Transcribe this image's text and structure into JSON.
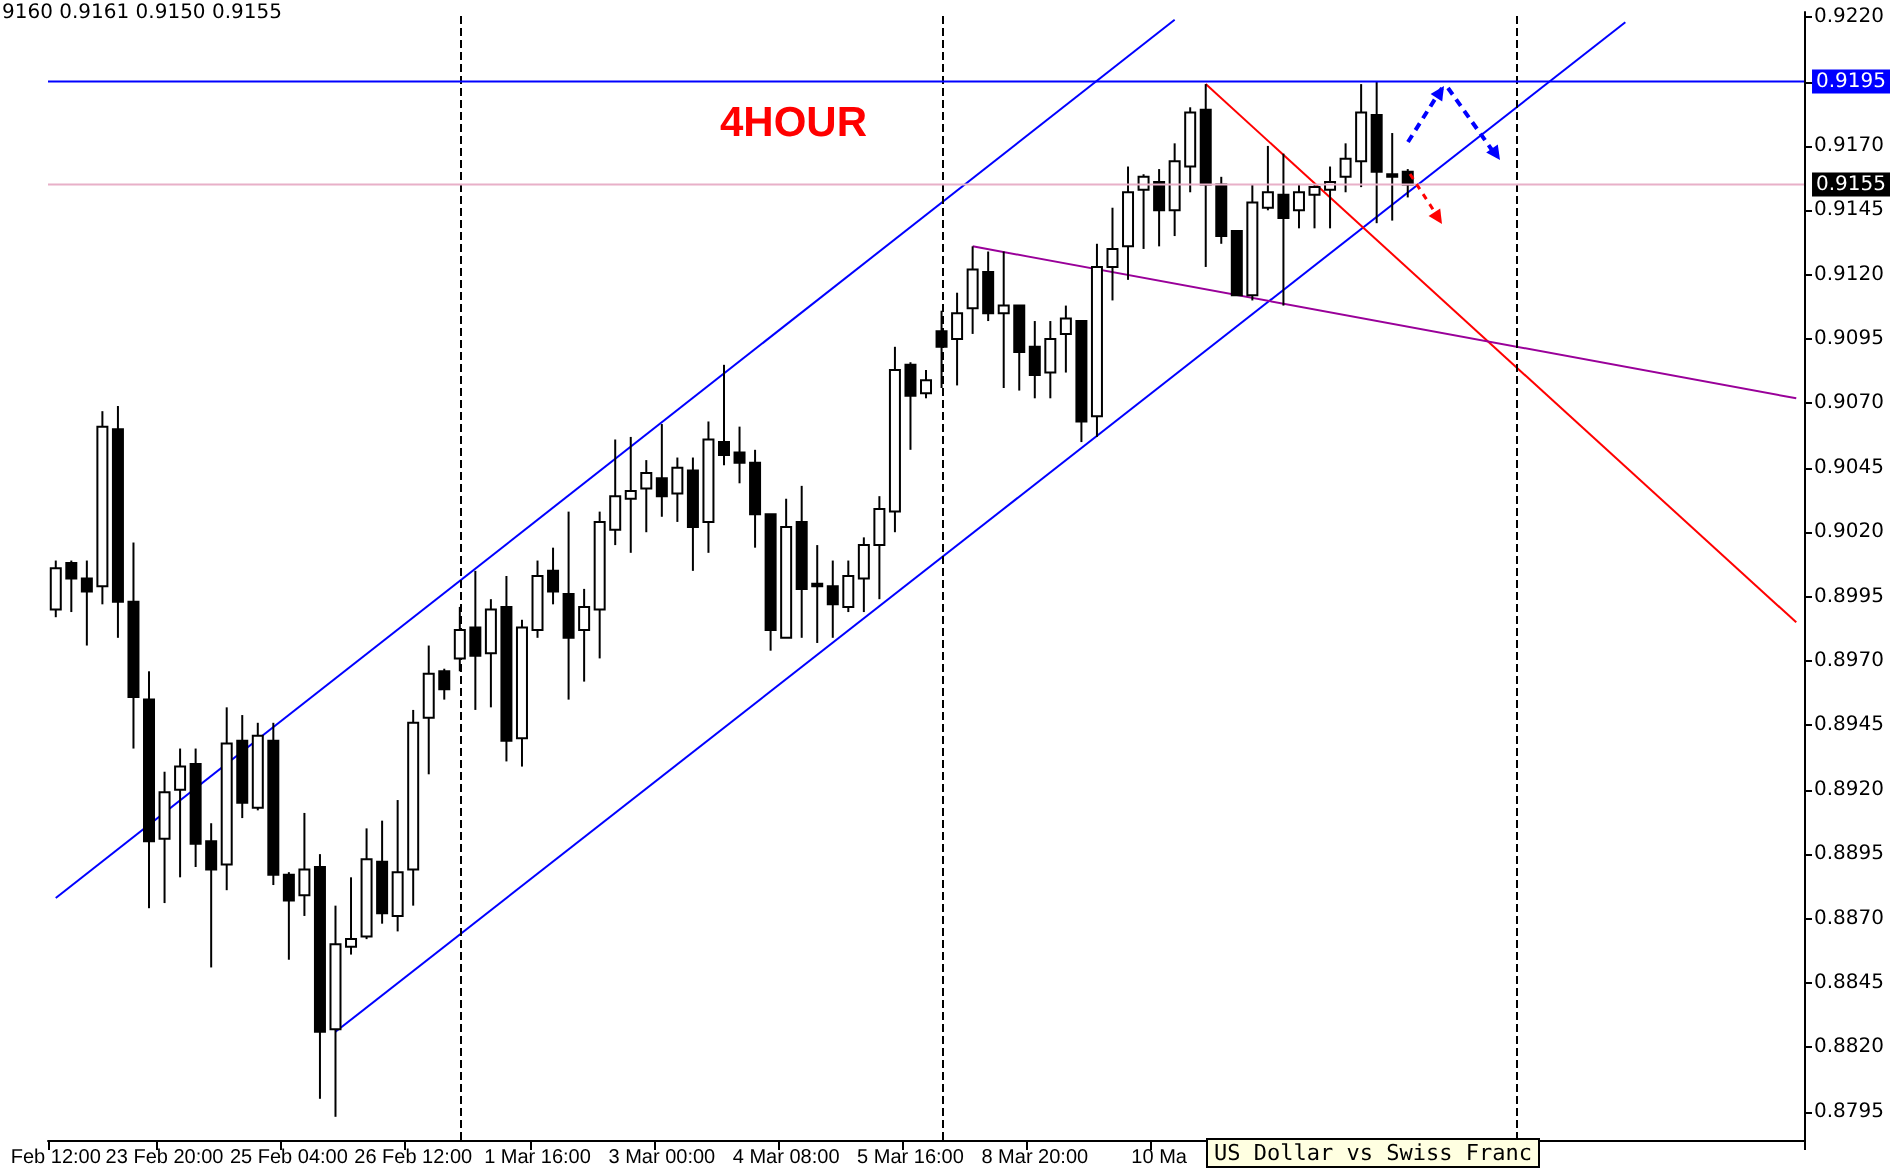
{
  "chart_data": {
    "type": "candlestick",
    "title": "4HOUR",
    "annotations": [
      "9160 0.9161 0.9150 0.9155",
      "US Dollar vs Swiss Franc"
    ],
    "categories": [
      "Feb 12:00",
      null,
      null,
      null,
      null,
      null,
      null,
      "23 Feb 20:00",
      null,
      null,
      null,
      null,
      null,
      null,
      null,
      "25 Feb 04:00",
      null,
      null,
      null,
      null,
      null,
      null,
      null,
      "26 Feb 12:00",
      null,
      null,
      null,
      null,
      null,
      null,
      null,
      "1 Mar 16:00",
      null,
      null,
      null,
      null,
      null,
      null,
      null,
      "3 Mar 00:00",
      null,
      null,
      null,
      null,
      null,
      null,
      null,
      "4 Mar 08:00",
      null,
      null,
      null,
      null,
      null,
      null,
      null,
      "5 Mar 16:00",
      null,
      null,
      null,
      null,
      null,
      null,
      null,
      "8 Mar 20:00",
      null,
      null,
      null,
      null,
      null,
      null,
      null,
      "10 Ma",
      null,
      null,
      null,
      null,
      null,
      null,
      null,
      null,
      null,
      null,
      null,
      null,
      null,
      null,
      null,
      null,
      null,
      null,
      null,
      null,
      null,
      null,
      null,
      null,
      null,
      null,
      null,
      null,
      null,
      null,
      null,
      null,
      null,
      null,
      null,
      null,
      null,
      null,
      null,
      null,
      null
    ],
    "ohlc": [
      [
        0.899,
        0.9009,
        0.8987,
        0.9006
      ],
      [
        0.9008,
        0.9009,
        0.8989,
        0.9002
      ],
      [
        0.9002,
        0.9009,
        0.8976,
        0.8997
      ],
      [
        0.8999,
        0.9067,
        0.8992,
        0.9061
      ],
      [
        0.906,
        0.9069,
        0.8979,
        0.8993
      ],
      [
        0.8993,
        0.9016,
        0.8936,
        0.8956
      ],
      [
        0.8955,
        0.8966,
        0.8874,
        0.89
      ],
      [
        0.8901,
        0.8927,
        0.8876,
        0.8919
      ],
      [
        0.892,
        0.8936,
        0.8886,
        0.8929
      ],
      [
        0.893,
        0.8936,
        0.889,
        0.8899
      ],
      [
        0.89,
        0.8907,
        0.8851,
        0.8889
      ],
      [
        0.8891,
        0.8952,
        0.8881,
        0.8938
      ],
      [
        0.8939,
        0.8949,
        0.8909,
        0.8915
      ],
      [
        0.8913,
        0.8946,
        0.8912,
        0.8941
      ],
      [
        0.8939,
        0.8946,
        0.8883,
        0.8887
      ],
      [
        0.8887,
        0.8888,
        0.8854,
        0.8877
      ],
      [
        0.8879,
        0.8911,
        0.8871,
        0.8889
      ],
      [
        0.889,
        0.8895,
        0.88,
        0.8826
      ],
      [
        0.8827,
        0.8875,
        0.8793,
        0.886
      ],
      [
        0.8859,
        0.8886,
        0.8856,
        0.8862
      ],
      [
        0.8863,
        0.8905,
        0.8862,
        0.8893
      ],
      [
        0.8892,
        0.8908,
        0.8868,
        0.8872
      ],
      [
        0.8871,
        0.8916,
        0.8865,
        0.8888
      ],
      [
        0.8889,
        0.8951,
        0.8875,
        0.8946
      ],
      [
        0.8948,
        0.8976,
        0.8926,
        0.8965
      ],
      [
        0.8966,
        0.8967,
        0.8955,
        0.8959
      ],
      [
        0.8971,
        0.8991,
        0.8966,
        0.8982
      ],
      [
        0.8983,
        0.9005,
        0.8951,
        0.8972
      ],
      [
        0.8973,
        0.8994,
        0.8952,
        0.899
      ],
      [
        0.8991,
        0.9003,
        0.8931,
        0.8939
      ],
      [
        0.894,
        0.8986,
        0.8929,
        0.8983
      ],
      [
        0.8982,
        0.9009,
        0.8979,
        0.9003
      ],
      [
        0.9005,
        0.9014,
        0.8992,
        0.8997
      ],
      [
        0.8996,
        0.9028,
        0.8955,
        0.8979
      ],
      [
        0.8982,
        0.8998,
        0.8962,
        0.8991
      ],
      [
        0.899,
        0.9028,
        0.8971,
        0.9024
      ],
      [
        0.9021,
        0.9056,
        0.9015,
        0.9034
      ],
      [
        0.9033,
        0.9057,
        0.9012,
        0.9036
      ],
      [
        0.9037,
        0.9048,
        0.902,
        0.9043
      ],
      [
        0.9041,
        0.9062,
        0.9026,
        0.9034
      ],
      [
        0.9035,
        0.9049,
        0.9024,
        0.9045
      ],
      [
        0.9044,
        0.9049,
        0.9005,
        0.9022
      ],
      [
        0.9024,
        0.9063,
        0.9012,
        0.9056
      ],
      [
        0.9055,
        0.9085,
        0.9046,
        0.905
      ],
      [
        0.9051,
        0.9061,
        0.9039,
        0.9047
      ],
      [
        0.9047,
        0.9052,
        0.9014,
        0.9027
      ],
      [
        0.9027,
        0.9027,
        0.8974,
        0.8982
      ],
      [
        0.8979,
        0.9033,
        0.8979,
        0.9022
      ],
      [
        0.9024,
        0.9038,
        0.8979,
        0.8998
      ],
      [
        0.9,
        0.9015,
        0.8977,
        0.8999
      ],
      [
        0.8999,
        0.9009,
        0.8979,
        0.8992
      ],
      [
        0.8991,
        0.9009,
        0.8989,
        0.9003
      ],
      [
        0.9002,
        0.9018,
        0.8989,
        0.9015
      ],
      [
        0.9015,
        0.9034,
        0.8994,
        0.9029
      ],
      [
        0.9028,
        0.9092,
        0.902,
        0.9083
      ],
      [
        0.9085,
        0.9086,
        0.9052,
        0.9073
      ],
      [
        0.9074,
        0.9083,
        0.9072,
        0.9079
      ],
      [
        0.9098,
        0.9106,
        0.9076,
        0.9092
      ],
      [
        0.9095,
        0.9113,
        0.9077,
        0.9105
      ],
      [
        0.9107,
        0.9131,
        0.9097,
        0.9122
      ],
      [
        0.9121,
        0.9129,
        0.9102,
        0.9105
      ],
      [
        0.9105,
        0.9129,
        0.9076,
        0.9108
      ],
      [
        0.9108,
        0.9108,
        0.9075,
        0.909
      ],
      [
        0.9092,
        0.9102,
        0.9072,
        0.9081
      ],
      [
        0.9082,
        0.9102,
        0.9072,
        0.9095
      ],
      [
        0.9097,
        0.9108,
        0.9082,
        0.9103
      ],
      [
        0.9102,
        0.9102,
        0.9055,
        0.9063
      ],
      [
        0.9065,
        0.9132,
        0.9057,
        0.9123
      ],
      [
        0.9123,
        0.9146,
        0.911,
        0.913
      ],
      [
        0.9131,
        0.9162,
        0.9118,
        0.9152
      ],
      [
        0.9153,
        0.9159,
        0.913,
        0.9158
      ],
      [
        0.9156,
        0.9161,
        0.9131,
        0.9145
      ],
      [
        0.9145,
        0.9171,
        0.9135,
        0.9164
      ],
      [
        0.9162,
        0.9185,
        0.9152,
        0.9183
      ],
      [
        0.9184,
        0.9194,
        0.9123,
        0.9155
      ],
      [
        0.9155,
        0.9158,
        0.9132,
        0.9135
      ],
      [
        0.9137,
        0.9137,
        0.9112,
        0.9112
      ],
      [
        0.9112,
        0.9155,
        0.911,
        0.9148
      ],
      [
        0.9146,
        0.917,
        0.9145,
        0.9152
      ],
      [
        0.9151,
        0.9167,
        0.9108,
        0.9142
      ],
      [
        0.9145,
        0.9155,
        0.9138,
        0.9152
      ],
      [
        0.9151,
        0.9155,
        0.9138,
        0.9154
      ],
      [
        0.9153,
        0.9162,
        0.9138,
        0.9156
      ],
      [
        0.9158,
        0.9171,
        0.9152,
        0.9165
      ],
      [
        0.9164,
        0.9194,
        0.9154,
        0.9183
      ],
      [
        0.9182,
        0.9195,
        0.914,
        0.916
      ],
      [
        0.9159,
        0.9175,
        0.9141,
        0.9158
      ],
      [
        0.916,
        0.9161,
        0.915,
        0.9155
      ],
      null,
      null,
      null,
      null,
      null,
      null,
      null,
      null,
      null,
      null,
      null,
      null,
      null,
      null,
      null,
      null,
      null,
      null,
      null,
      null,
      null,
      null,
      null,
      null,
      null
    ],
    "series": [
      {
        "type": "line",
        "color": "#0000ff",
        "values": [
          0.8878,
          null,
          null,
          null,
          null,
          null,
          null,
          null,
          null,
          null,
          null,
          null,
          null,
          null,
          null,
          null,
          null,
          null,
          null,
          null,
          null,
          null,
          null,
          null,
          null,
          null,
          null,
          null,
          null,
          null,
          null,
          null,
          null,
          null,
          null,
          null,
          null,
          null,
          null,
          null,
          null,
          null,
          null,
          null,
          null,
          null,
          null,
          null,
          null,
          null,
          null,
          null,
          null,
          null,
          null,
          null,
          null,
          null,
          null,
          null,
          null,
          null,
          null,
          null,
          null,
          null,
          null,
          null,
          null,
          null,
          null,
          null,
          0.9219,
          null,
          null,
          null,
          null,
          null,
          null,
          null,
          null,
          null,
          null,
          null,
          null,
          null,
          null,
          null,
          null,
          null,
          null,
          null,
          null,
          null,
          null,
          null,
          null,
          null,
          null,
          null,
          null,
          null,
          null,
          null,
          null,
          null,
          null,
          null,
          null,
          null,
          null,
          null,
          null
        ]
      },
      {
        "type": "line",
        "color": "#0000ff",
        "values": [
          null,
          null,
          null,
          null,
          null,
          null,
          null,
          null,
          null,
          null,
          null,
          null,
          null,
          null,
          null,
          null,
          null,
          null,
          0.8826,
          null,
          null,
          null,
          null,
          null,
          null,
          null,
          null,
          null,
          null,
          null,
          null,
          null,
          null,
          null,
          null,
          null,
          null,
          null,
          null,
          null,
          null,
          null,
          null,
          null,
          null,
          null,
          null,
          null,
          null,
          null,
          null,
          null,
          null,
          null,
          null,
          null,
          null,
          null,
          null,
          null,
          null,
          null,
          null,
          null,
          null,
          null,
          null,
          null,
          null,
          null,
          null,
          null,
          null,
          null,
          null,
          null,
          null,
          null,
          null,
          null,
          null,
          null,
          null,
          null,
          null,
          null,
          null,
          null,
          null,
          null,
          null,
          null,
          null,
          null,
          null,
          null,
          null,
          null,
          null,
          null,
          null,
          0.9218,
          null,
          null,
          null,
          null,
          null,
          null,
          null,
          null,
          null,
          null,
          null
        ]
      },
      {
        "type": "line",
        "color": "#ff0000",
        "values": [
          null,
          null,
          null,
          null,
          null,
          null,
          null,
          null,
          null,
          null,
          null,
          null,
          null,
          null,
          null,
          null,
          null,
          null,
          null,
          null,
          null,
          null,
          null,
          null,
          null,
          null,
          null,
          null,
          null,
          null,
          null,
          null,
          null,
          null,
          null,
          null,
          null,
          null,
          null,
          null,
          null,
          null,
          null,
          null,
          null,
          null,
          null,
          null,
          null,
          null,
          null,
          null,
          null,
          null,
          null,
          null,
          null,
          null,
          null,
          null,
          null,
          null,
          null,
          null,
          null,
          null,
          null,
          null,
          null,
          null,
          null,
          null,
          null,
          null,
          0.9194,
          null,
          null,
          null,
          null,
          null,
          null,
          null,
          null,
          null,
          null,
          null,
          null,
          null,
          null,
          null,
          null,
          null,
          null,
          null,
          null,
          null,
          null,
          null,
          null,
          null,
          null,
          null,
          null,
          null,
          null,
          null,
          null,
          null,
          null,
          null,
          null,
          null,
          0.8985
        ]
      },
      {
        "type": "line",
        "color": "#990099",
        "values": [
          null,
          null,
          null,
          null,
          null,
          null,
          null,
          null,
          null,
          null,
          null,
          null,
          null,
          null,
          null,
          null,
          null,
          null,
          null,
          null,
          null,
          null,
          null,
          null,
          null,
          null,
          null,
          null,
          null,
          null,
          null,
          null,
          null,
          null,
          null,
          null,
          null,
          null,
          null,
          null,
          null,
          null,
          null,
          null,
          null,
          null,
          null,
          null,
          null,
          null,
          null,
          null,
          null,
          null,
          null,
          null,
          null,
          null,
          null,
          0.9131,
          null,
          null,
          null,
          null,
          null,
          null,
          null,
          null,
          null,
          null,
          null,
          null,
          null,
          null,
          null,
          null,
          null,
          null,
          null,
          null,
          null,
          null,
          null,
          null,
          null,
          null,
          null,
          null,
          null,
          null,
          null,
          null,
          null,
          null,
          null,
          null,
          null,
          null,
          null,
          null,
          null,
          null,
          null,
          null,
          null,
          null,
          null,
          null,
          null,
          null,
          null,
          null,
          0.9072
        ]
      }
    ],
    "ylim": [
      0.8784,
      0.9222
    ],
    "yticks": [
      {
        "value": 0.922,
        "label": "0.9220"
      },
      {
        "value": 0.9195,
        "label": null
      },
      {
        "value": 0.917,
        "label": "0.9170"
      },
      0.9145,
      {
        "value": 0.912,
        "label": "0.9120"
      },
      0.9095,
      {
        "value": 0.907,
        "label": "0.9070"
      },
      0.9045,
      {
        "value": 0.902,
        "label": "0.9020"
      },
      0.8995,
      {
        "value": 0.897,
        "label": "0.8970"
      },
      0.8945,
      {
        "value": 0.892,
        "label": "0.8920"
      },
      0.8895,
      {
        "value": 0.887,
        "label": "0.8870"
      },
      0.8845,
      {
        "value": 0.882,
        "label": "0.8820"
      },
      0.8795
    ],
    "ref_lines": [
      {
        "axis": "y",
        "value": 0.9195,
        "label": "0.9195",
        "color": "#0000ff"
      },
      {
        "axis": "y",
        "value": 0.9155,
        "label": "0.9155",
        "color": "#e8b0c8"
      }
    ],
    "grid": false
  }
}
